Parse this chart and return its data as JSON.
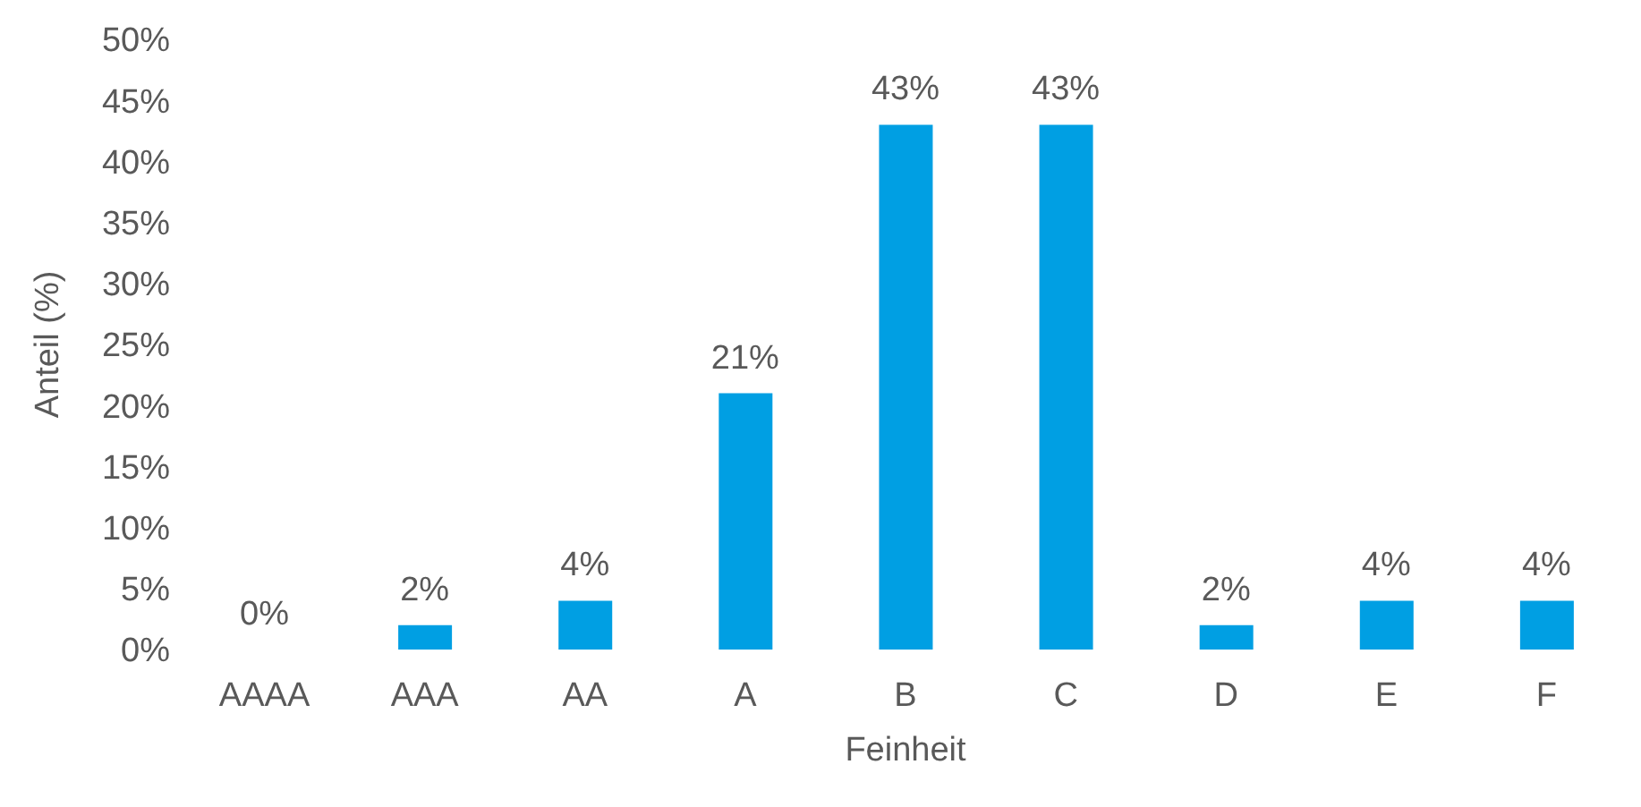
{
  "chart_data": {
    "type": "bar",
    "xlabel": "Feinheit",
    "ylabel": "Anteil (%)",
    "categories": [
      "AAAA",
      "AAA",
      "AA",
      "A",
      "B",
      "C",
      "D",
      "E",
      "F"
    ],
    "values": [
      0,
      2,
      4,
      21,
      43,
      43,
      2,
      4,
      4
    ],
    "value_labels": [
      "0%",
      "2%",
      "4%",
      "21%",
      "43%",
      "43%",
      "2%",
      "4%",
      "4%"
    ],
    "color": "#009fe3",
    "ylim": [
      0,
      50
    ],
    "yticks": [
      {
        "value": 0,
        "label": "0%"
      },
      {
        "value": 5,
        "label": "5%"
      },
      {
        "value": 10,
        "label": "10%"
      },
      {
        "value": 15,
        "label": "15%"
      },
      {
        "value": 20,
        "label": "20%"
      },
      {
        "value": 25,
        "label": "25%"
      },
      {
        "value": 30,
        "label": "30%"
      },
      {
        "value": 35,
        "label": "35%"
      },
      {
        "value": 40,
        "label": "40%"
      },
      {
        "value": 45,
        "label": "45%"
      },
      {
        "value": 50,
        "label": "50%"
      }
    ],
    "grid": false,
    "legend": false
  }
}
